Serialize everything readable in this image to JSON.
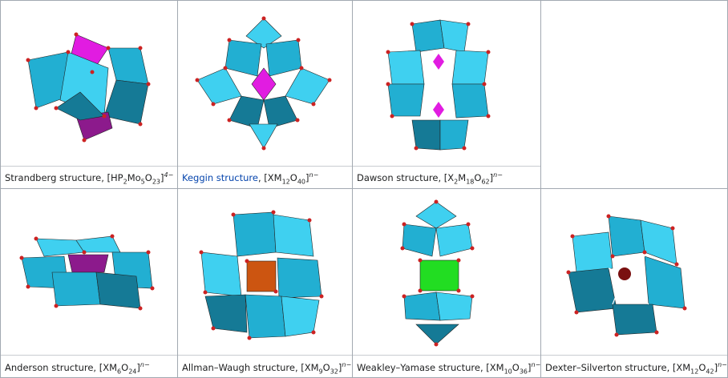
{
  "colors": {
    "cyan_light": "#3fd0f0",
    "cyan_mid": "#22afd2",
    "cyan_dark": "#157a96",
    "magenta": "#e11ce1",
    "magenta_dark": "#8c1a8c",
    "green": "#22dd22",
    "orange": "#cc5511",
    "oxygen": "#cc2222",
    "dark_red": "#7a1010",
    "link": "#0645ad"
  },
  "cells": [
    {
      "name": "strandberg",
      "link": false,
      "prefix": "Strandberg structure, [HP",
      "s1": "2",
      "m1": "Mo",
      "s2": "5",
      "m2": "O",
      "s3": "23",
      "end": "]",
      "charge": "4−"
    },
    {
      "name": "keggin",
      "link": true,
      "link_text": "Keggin structure",
      "rest": ", [XM",
      "s1": "12",
      "m1": "O",
      "s2": "40",
      "end": "]",
      "charge": "n−"
    },
    {
      "name": "dawson",
      "link": false,
      "prefix": "Dawson structure, [X",
      "s1": "2",
      "m1": "M",
      "s2": "18",
      "m2": "O",
      "s3": "62",
      "end": "]",
      "charge": "n−"
    },
    {
      "name": "anderson",
      "link": false,
      "prefix": "Anderson structure, [XM",
      "s1": "6",
      "m1": "O",
      "s2": "24",
      "end": "]",
      "charge": "n−"
    },
    {
      "name": "allman",
      "link": false,
      "prefix": "Allman–Waugh structure, [XM",
      "s1": "9",
      "m1": "O",
      "s2": "32",
      "end": "]",
      "charge": "n−"
    },
    {
      "name": "weakley",
      "link": false,
      "prefix": "Weakley–Yamase structure, [XM",
      "s1": "10",
      "m1": "O",
      "s2": "36",
      "end": "]",
      "charge": "n−"
    },
    {
      "name": "dexter",
      "link": false,
      "prefix": "Dexter–Silverton structure, [XM",
      "s1": "12",
      "m1": "O",
      "s2": "42",
      "end": "]",
      "charge": "n−"
    }
  ]
}
